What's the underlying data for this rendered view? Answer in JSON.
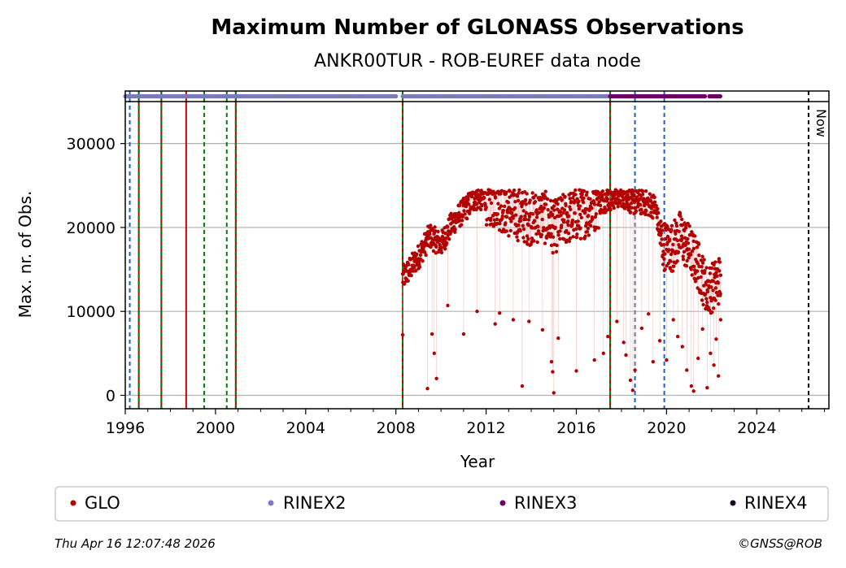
{
  "chart_data": {
    "type": "scatter",
    "title": "Maximum Number of GLONASS Observations",
    "subtitle": "ANKR00TUR - ROB-EUREF data node",
    "xlabel": "Year",
    "ylabel": "Max. nr. of Obs.",
    "xlim": [
      1996.0,
      2027.2
    ],
    "ylim": [
      -1600,
      35000
    ],
    "x_ticks": [
      1996,
      2000,
      2004,
      2008,
      2012,
      2016,
      2020,
      2024
    ],
    "y_ticks": [
      0,
      10000,
      20000,
      30000
    ],
    "grid": "horizontal",
    "now_label": "Now",
    "now_year": 2026.3,
    "legend_position": "below",
    "series": [
      {
        "name": "GLO",
        "color": "#b30000",
        "trend": [
          [
            2008.3,
            14000
          ],
          [
            2008.6,
            15000
          ],
          [
            2009.0,
            16500
          ],
          [
            2009.5,
            19000
          ],
          [
            2010.0,
            18000
          ],
          [
            2010.5,
            20500
          ],
          [
            2011.0,
            22000
          ],
          [
            2011.5,
            23500
          ],
          [
            2012.0,
            23500
          ],
          [
            2012.5,
            23000
          ],
          [
            2013.0,
            22000
          ],
          [
            2013.5,
            21500
          ],
          [
            2014.0,
            21000
          ],
          [
            2014.5,
            21500
          ],
          [
            2015.0,
            20000
          ],
          [
            2015.5,
            21000
          ],
          [
            2016.0,
            21500
          ],
          [
            2016.5,
            22000
          ],
          [
            2017.0,
            23000
          ],
          [
            2017.5,
            23500
          ],
          [
            2018.0,
            24000
          ],
          [
            2018.5,
            23000
          ],
          [
            2019.0,
            23000
          ],
          [
            2019.5,
            22500
          ],
          [
            2019.8,
            18000
          ],
          [
            2020.2,
            17500
          ],
          [
            2020.6,
            19000
          ],
          [
            2021.0,
            17500
          ],
          [
            2021.4,
            15500
          ],
          [
            2021.8,
            12500
          ],
          [
            2022.1,
            13000
          ],
          [
            2022.4,
            14000
          ]
        ],
        "outliers": [
          [
            2008.3,
            7200
          ],
          [
            2009.4,
            800
          ],
          [
            2009.6,
            7300
          ],
          [
            2009.7,
            5000
          ],
          [
            2009.8,
            2000
          ],
          [
            2010.3,
            10700
          ],
          [
            2011.0,
            7300
          ],
          [
            2011.6,
            10000
          ],
          [
            2012.4,
            8500
          ],
          [
            2012.6,
            9800
          ],
          [
            2013.2,
            9000
          ],
          [
            2013.6,
            1100
          ],
          [
            2013.9,
            8800
          ],
          [
            2014.5,
            7800
          ],
          [
            2014.9,
            4000
          ],
          [
            2014.95,
            2800
          ],
          [
            2015.0,
            300
          ],
          [
            2015.2,
            6800
          ],
          [
            2016.0,
            2900
          ],
          [
            2016.8,
            4200
          ],
          [
            2017.2,
            5000
          ],
          [
            2017.4,
            7000
          ],
          [
            2017.8,
            8800
          ],
          [
            2018.1,
            6300
          ],
          [
            2018.2,
            4800
          ],
          [
            2018.4,
            1800
          ],
          [
            2018.5,
            600
          ],
          [
            2018.6,
            3000
          ],
          [
            2018.9,
            8000
          ],
          [
            2019.2,
            9700
          ],
          [
            2019.4,
            4000
          ],
          [
            2019.7,
            6500
          ],
          [
            2020.0,
            4200
          ],
          [
            2020.3,
            9000
          ],
          [
            2020.5,
            7000
          ],
          [
            2020.7,
            5800
          ],
          [
            2020.9,
            3000
          ],
          [
            2021.1,
            1100
          ],
          [
            2021.2,
            500
          ],
          [
            2021.4,
            4400
          ],
          [
            2021.6,
            7900
          ],
          [
            2021.8,
            900
          ],
          [
            2021.95,
            5000
          ],
          [
            2022.1,
            3600
          ],
          [
            2022.2,
            6700
          ],
          [
            2022.3,
            2300
          ],
          [
            2022.4,
            9000
          ]
        ]
      },
      {
        "name": "RINEX2",
        "color": "#7b7bb8",
        "ranges": [
          [
            1996.0,
            2008.0
          ],
          [
            2008.3,
            2017.5
          ]
        ]
      },
      {
        "name": "RINEX3",
        "color": "#6a0066",
        "ranges": [
          [
            2017.5,
            2021.7
          ],
          [
            2021.9,
            2022.4
          ]
        ]
      },
      {
        "name": "RINEX4",
        "color": "#1c0021",
        "ranges": []
      }
    ],
    "event_lines": [
      {
        "x": 1996.2,
        "color": "#1f5fbf",
        "style": "dashed"
      },
      {
        "x": 1996.6,
        "color": "#b30000",
        "style": "solid"
      },
      {
        "x": 1996.6,
        "color": "#008000",
        "style": "dashed"
      },
      {
        "x": 1997.6,
        "color": "#b30000",
        "style": "solid"
      },
      {
        "x": 1997.6,
        "color": "#008000",
        "style": "dashed"
      },
      {
        "x": 1998.7,
        "color": "#cc0000",
        "style": "solid"
      },
      {
        "x": 1999.5,
        "color": "#008000",
        "style": "dashed"
      },
      {
        "x": 2000.5,
        "color": "#008000",
        "style": "dashed"
      },
      {
        "x": 2000.9,
        "color": "#b30000",
        "style": "solid"
      },
      {
        "x": 2000.9,
        "color": "#008000",
        "style": "dashed"
      },
      {
        "x": 2008.3,
        "color": "#b30000",
        "style": "solid"
      },
      {
        "x": 2008.3,
        "color": "#008000",
        "style": "dashed"
      },
      {
        "x": 2017.5,
        "color": "#b30000",
        "style": "solid"
      },
      {
        "x": 2017.5,
        "color": "#008000",
        "style": "dashed"
      },
      {
        "x": 2018.6,
        "color": "#1f5fbf",
        "style": "dashed"
      },
      {
        "x": 2019.9,
        "color": "#1f5fbf",
        "style": "dashed"
      }
    ]
  },
  "footer": {
    "timestamp": "Thu Apr 16 12:07:48 2026",
    "copyright": "©GNSS@ROB"
  }
}
